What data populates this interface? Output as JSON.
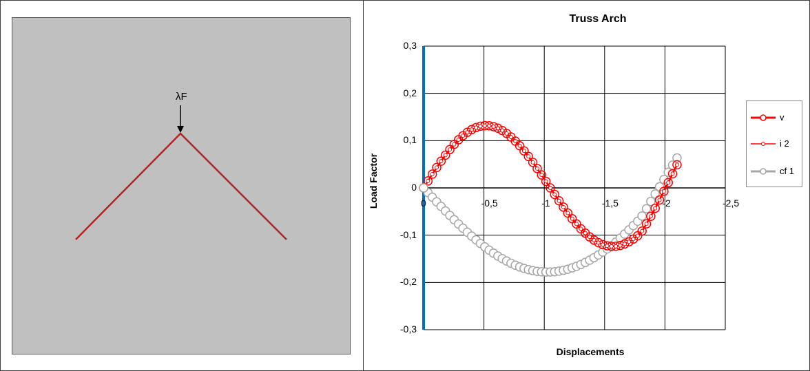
{
  "left_panel": {
    "load_label": "λF",
    "background": "#c0c0c0",
    "truss_color": "#b22222"
  },
  "chart_data": {
    "type": "scatter",
    "title": "Truss Arch",
    "xlabel": "Displacements",
    "ylabel": "Load Factor",
    "xlim": [
      0,
      -2.5
    ],
    "ylim": [
      -0.3,
      0.3
    ],
    "x_ticks": [
      "0",
      "-0,5",
      "-1",
      "-1,5",
      "-2",
      "-2,5"
    ],
    "y_ticks": [
      "0,3",
      "0,2",
      "0,1",
      "0",
      "-0,1",
      "-0,2",
      "-0,3"
    ],
    "grid": true,
    "legend_position": "right",
    "series": [
      {
        "name": "v",
        "color": "#ff0000",
        "marker": "open-circle"
      },
      {
        "name": "i 2",
        "color": "#ff0000",
        "marker": "small-circle"
      },
      {
        "name": "cf 1",
        "color": "#a6a6a6",
        "marker": "open-circle"
      }
    ],
    "axis_line_color": "#0070c0",
    "curve_v": {
      "x_start": 0,
      "x_end": -2.1,
      "points": 59,
      "A": 0.18,
      "B": 0.29,
      "C": 0.157
    },
    "curve_cf1": {
      "x_start": 0,
      "x_end": -2.1,
      "points": 59,
      "A": 0.18,
      "B": 0.29,
      "C": 0.157
    }
  }
}
